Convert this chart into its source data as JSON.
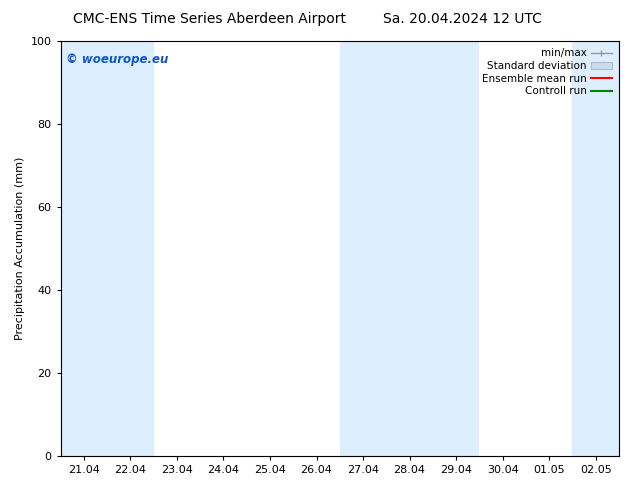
{
  "title_left": "CMC-ENS Time Series Aberdeen Airport",
  "title_right": "Sa. 20.04.2024 12 UTC",
  "ylabel": "Precipitation Accumulation (mm)",
  "watermark": "© woeurope.eu",
  "ylim": [
    0,
    100
  ],
  "yticks": [
    0,
    20,
    40,
    60,
    80,
    100
  ],
  "x_tick_labels": [
    "21.04",
    "22.04",
    "23.04",
    "24.04",
    "25.04",
    "26.04",
    "27.04",
    "28.04",
    "29.04",
    "30.04",
    "01.05",
    "02.05"
  ],
  "x_tick_positions": [
    0,
    1,
    2,
    3,
    4,
    5,
    6,
    7,
    8,
    9,
    10,
    11
  ],
  "xlim": [
    -0.5,
    11.5
  ],
  "shade_bands": [
    {
      "x_start": -0.5,
      "x_end": 0.5
    },
    {
      "x_start": 0.5,
      "x_end": 1.5
    },
    {
      "x_start": 5.5,
      "x_end": 6.5
    },
    {
      "x_start": 6.5,
      "x_end": 7.5
    },
    {
      "x_start": 7.5,
      "x_end": 8.5
    },
    {
      "x_start": 10.5,
      "x_end": 11.5
    }
  ],
  "shade_color": "#ddeeff",
  "legend_entries": [
    {
      "label": "min/max",
      "type": "errorbar"
    },
    {
      "label": "Standard deviation",
      "type": "rect"
    },
    {
      "label": "Ensemble mean run",
      "type": "line",
      "color": "red"
    },
    {
      "label": "Controll run",
      "type": "line",
      "color": "green"
    }
  ],
  "background_color": "#ffffff",
  "plot_bg_color": "#ffffff",
  "title_fontsize": 10,
  "axis_label_fontsize": 8,
  "tick_fontsize": 8,
  "watermark_color": "#1155cc",
  "minmax_color": "#999999",
  "std_face_color": "#ccddf0",
  "std_edge_color": "#aabbcc"
}
